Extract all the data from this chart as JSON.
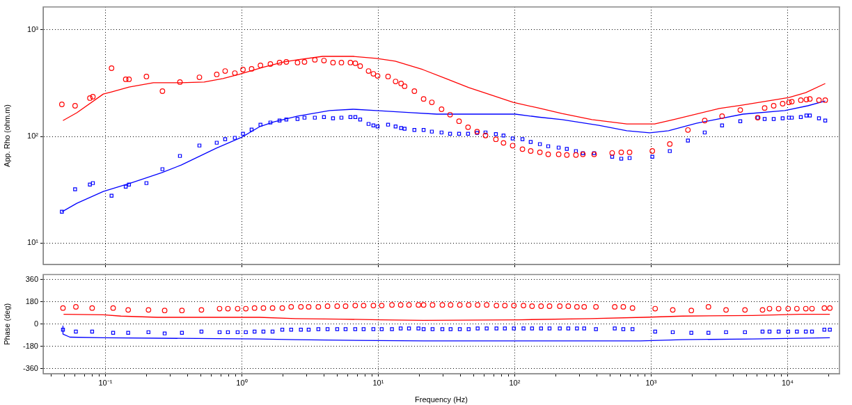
{
  "chart_data": [
    {
      "type": "scatter",
      "ylabel": "App. Rho (ohm.m)",
      "log": "xy",
      "xlim": [
        0.035,
        24000
      ],
      "ylim": [
        6.3,
        1640
      ],
      "xticks": [
        0.1,
        1,
        10,
        100,
        1000,
        10000
      ],
      "yticks": [
        {
          "value": 10,
          "label": "10¹"
        },
        {
          "value": 100,
          "label": "10²"
        },
        {
          "value": 1000,
          "label": "10³"
        }
      ],
      "grid": true,
      "tick_labels": "y",
      "x": [
        0.048,
        0.06,
        0.077,
        0.081,
        0.111,
        0.141,
        0.149,
        0.2,
        0.262,
        0.352,
        0.489,
        0.655,
        0.755,
        0.889,
        1.02,
        1.18,
        1.37,
        1.62,
        1.89,
        2.12,
        2.56,
        2.88,
        3.43,
        4,
        4.66,
        5.37,
        6.25,
        6.79,
        7.37,
        8.49,
        9.21,
        9.89,
        11.8,
        13.4,
        14.7,
        15.6,
        18.4,
        21.5,
        24.7,
        29.1,
        33.6,
        39.1,
        45.5,
        53,
        61.1,
        72.8,
        82.8,
        96.6,
        114,
        131,
        153,
        176,
        210,
        241,
        281,
        316,
        382,
        518,
        604,
        695,
        1020,
        1370,
        1860,
        2470,
        3310,
        4500,
        6040,
        6790,
        7910,
        9200,
        10230,
        10740,
        12500,
        13740,
        14560,
        16980,
        18880
      ],
      "series": [
        {
          "type": "scatter",
          "marker": "circle",
          "color": "#ff0000",
          "values": [
            200,
            194,
            229,
            236,
            437,
            344,
            344,
            365,
            266,
            324,
            359,
            382,
            411,
            393,
            424,
            431,
            464,
            478,
            493,
            500,
            493,
            500,
            524,
            515,
            493,
            493,
            493,
            486,
            457,
            411,
            387,
            370,
            365,
            328,
            314,
            296,
            266,
            225,
            209,
            180,
            160,
            139,
            122,
            111,
            102,
            94,
            87,
            82,
            76,
            73,
            71,
            68,
            68,
            67,
            67,
            68,
            68,
            70,
            71,
            71,
            73,
            85,
            115,
            141,
            155,
            177,
            150,
            185,
            194,
            203,
            209,
            212,
            219,
            222,
            225,
            219,
            219
          ]
        },
        {
          "type": "scatter",
          "marker": "square",
          "color": "#0000ff",
          "values": [
            19.7,
            31.9,
            35.4,
            36.5,
            27.8,
            33.8,
            35.4,
            36.5,
            49.3,
            65.6,
            82.2,
            87.3,
            94.2,
            97,
            106,
            116,
            129,
            135,
            141,
            144,
            146,
            150,
            150,
            152,
            148,
            150,
            152,
            152,
            144,
            131,
            127,
            124,
            129,
            124,
            120,
            118,
            115,
            115,
            111,
            109,
            106,
            106,
            106,
            108,
            109,
            105,
            102,
            95.6,
            94.2,
            88.7,
            84.7,
            81,
            78.6,
            76.3,
            72.9,
            69.7,
            69.7,
            64.6,
            61.8,
            62.7,
            64.6,
            72.9,
            91.4,
            109,
            127,
            139,
            150,
            146,
            146,
            148,
            150,
            150,
            152,
            157,
            157,
            148,
            141
          ]
        },
        {
          "type": "line",
          "color": "#ff0000",
          "x": [
            0.0489,
            0.0618,
            0.0966,
            0.111,
            0.149,
            0.225,
            0.36,
            0.53,
            0.728,
            0.954,
            1.42,
            2.02,
            2.56,
            3.91,
            6.55,
            9.66,
            13.3,
            21.2,
            31.3,
            46.1,
            68.7,
            97.7,
            149,
            222,
            368,
            663,
            1060,
            1460,
            3160,
            4710,
            10230,
            13580,
            18880
          ],
          "values": [
            141,
            167,
            250,
            262,
            291,
            319,
            319,
            324,
            349,
            382,
            444,
            500,
            524,
            564,
            564,
            540,
            508,
            424,
            349,
            287,
            243,
            209,
            185,
            164,
            144,
            131,
            131,
            144,
            183,
            197,
            232,
            258,
            314
          ]
        },
        {
          "type": "line",
          "color": "#0000ff",
          "x": [
            0.0483,
            0.0618,
            0.0966,
            0.153,
            0.259,
            0.36,
            0.647,
            1,
            1.36,
            1.72,
            2.56,
            4.4,
            6.55,
            9.66,
            17.4,
            26.8,
            101,
            149,
            222,
            414,
            663,
            977,
            1340,
            2150,
            4710,
            9540,
            14060,
            18880
          ],
          "values": [
            19.7,
            23.6,
            30.5,
            36.5,
            45.7,
            54,
            77.4,
            98.5,
            124,
            137,
            155,
            175,
            180,
            175,
            167,
            162,
            162,
            152,
            144,
            127,
            113,
            108,
            113,
            133,
            162,
            175,
            194,
            215
          ]
        }
      ]
    },
    {
      "type": "scatter",
      "xlabel": "Frequency (Hz)",
      "ylabel": "Phase (deg)",
      "log": "x",
      "xlim": [
        0.035,
        24000
      ],
      "ylim": [
        -400,
        400
      ],
      "grid": true,
      "xticks": [
        {
          "value": 0.04,
          "label": null
        },
        {
          "value": 0.05,
          "label": null
        },
        {
          "value": 0.06,
          "label": null
        },
        {
          "value": 0.07,
          "label": null
        },
        {
          "value": 0.08,
          "label": null
        },
        {
          "value": 0.09,
          "label": null
        },
        {
          "value": 0.1,
          "label": "10⁻¹"
        },
        {
          "value": 0.2,
          "label": null
        },
        {
          "value": 0.3,
          "label": null
        },
        {
          "value": 0.4,
          "label": null
        },
        {
          "value": 0.5,
          "label": null
        },
        {
          "value": 0.6,
          "label": null
        },
        {
          "value": 0.7,
          "label": null
        },
        {
          "value": 0.8,
          "label": null
        },
        {
          "value": 0.9,
          "label": null
        },
        {
          "value": 1,
          "label": "10⁰"
        },
        {
          "value": 2,
          "label": null
        },
        {
          "value": 3,
          "label": null
        },
        {
          "value": 4,
          "label": null
        },
        {
          "value": 5,
          "label": null
        },
        {
          "value": 6,
          "label": null
        },
        {
          "value": 7,
          "label": null
        },
        {
          "value": 8,
          "label": null
        },
        {
          "value": 9,
          "label": null
        },
        {
          "value": 10,
          "label": "10¹"
        },
        {
          "value": 20,
          "label": null
        },
        {
          "value": 30,
          "label": null
        },
        {
          "value": 40,
          "label": null
        },
        {
          "value": 50,
          "label": null
        },
        {
          "value": 60,
          "label": null
        },
        {
          "value": 70,
          "label": null
        },
        {
          "value": 80,
          "label": null
        },
        {
          "value": 90,
          "label": null
        },
        {
          "value": 100,
          "label": "10²"
        },
        {
          "value": 200,
          "label": null
        },
        {
          "value": 300,
          "label": null
        },
        {
          "value": 400,
          "label": null
        },
        {
          "value": 500,
          "label": null
        },
        {
          "value": 600,
          "label": null
        },
        {
          "value": 700,
          "label": null
        },
        {
          "value": 800,
          "label": null
        },
        {
          "value": 900,
          "label": null
        },
        {
          "value": 1000,
          "label": "10³"
        },
        {
          "value": 2000,
          "label": null
        },
        {
          "value": 3000,
          "label": null
        },
        {
          "value": 4000,
          "label": null
        },
        {
          "value": 5000,
          "label": null
        },
        {
          "value": 6000,
          "label": null
        },
        {
          "value": 7000,
          "label": null
        },
        {
          "value": 8000,
          "label": null
        },
        {
          "value": 9000,
          "label": null
        },
        {
          "value": 10000,
          "label": "10⁴"
        },
        {
          "value": 20000,
          "label": null
        }
      ],
      "yticks": [
        360,
        180,
        0,
        -180,
        -360
      ],
      "x": [
        0.0489,
        0.0608,
        0.08,
        0.114,
        0.147,
        0.207,
        0.272,
        0.364,
        0.506,
        0.687,
        0.791,
        0.932,
        1.07,
        1.24,
        1.44,
        1.68,
        1.98,
        2.3,
        2.71,
        3.09,
        3.64,
        4.25,
        5,
        5.76,
        6.78,
        7.81,
        9.21,
        10.6,
        12.6,
        14.6,
        16.8,
        19.7,
        21.5,
        25,
        29.5,
        33.9,
        39.6,
        46,
        53.5,
        62.3,
        73.5,
        84.7,
        98.6,
        116,
        134,
        156,
        180,
        214,
        247,
        286,
        323,
        394,
        541,
        625,
        730,
        1070,
        1440,
        1970,
        2630,
        3540,
        4870,
        6550,
        7370,
        8600,
        10100,
        11700,
        13600,
        15100,
        18600,
        20400
      ],
      "series": [
        {
          "type": "scatter",
          "marker": "circle",
          "color": "#ff0000",
          "values": [
            130,
            140,
            130,
            130,
            115,
            115,
            110,
            110,
            115,
            125,
            125,
            125,
            125,
            130,
            130,
            130,
            130,
            140,
            140,
            140,
            140,
            145,
            145,
            145,
            150,
            150,
            150,
            150,
            155,
            155,
            155,
            155,
            155,
            155,
            155,
            155,
            155,
            155,
            155,
            155,
            150,
            150,
            150,
            150,
            145,
            145,
            145,
            145,
            145,
            140,
            140,
            140,
            140,
            140,
            130,
            125,
            115,
            110,
            140,
            115,
            115,
            115,
            125,
            125,
            125,
            125,
            125,
            125,
            130,
            130
          ]
        },
        {
          "type": "scatter",
          "marker": "square",
          "color": "#0000ff",
          "values": [
            -45,
            -60,
            -60,
            -70,
            -70,
            -65,
            -75,
            -70,
            -60,
            -65,
            -65,
            -65,
            -65,
            -60,
            -60,
            -60,
            -45,
            -45,
            -45,
            -45,
            -40,
            -40,
            -40,
            -40,
            -40,
            -40,
            -40,
            -40,
            -40,
            -35,
            -35,
            -35,
            -40,
            -40,
            -40,
            -40,
            -40,
            -40,
            -35,
            -35,
            -35,
            -35,
            -35,
            -35,
            -35,
            -35,
            -35,
            -35,
            -35,
            -35,
            -35,
            -40,
            -35,
            -40,
            -40,
            -60,
            -65,
            -70,
            -70,
            -65,
            -65,
            -60,
            -60,
            -60,
            -60,
            -60,
            -60,
            -60,
            -45,
            -45
          ]
        },
        {
          "type": "line",
          "color": "#ff0000",
          "x": [
            0.0494,
            0.0966,
            0.13,
            0.241,
            1.34,
            2.47,
            5.24,
            10.5,
            21.5,
            106,
            359,
            884,
            1690,
            5530,
            12200,
            20400
          ],
          "values": [
            80,
            75,
            65,
            55,
            55,
            45,
            40,
            35,
            30,
            35,
            45,
            55,
            65,
            70,
            80,
            80
          ]
        },
        {
          "type": "line",
          "color": "#0000ff",
          "x": [
            0.0489,
            0.0489,
            0.055,
            0.0966,
            1.34,
            2.47,
            5.24,
            21.5,
            838,
            1690,
            5530,
            20400
          ],
          "values": [
            -15,
            -80,
            -105,
            -110,
            -120,
            -125,
            -130,
            -135,
            -135,
            -125,
            -120,
            -110
          ]
        }
      ]
    }
  ]
}
